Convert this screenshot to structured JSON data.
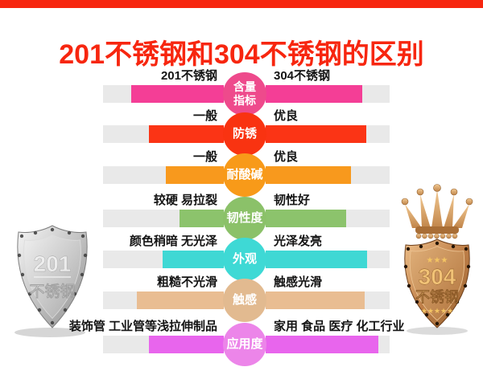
{
  "page": {
    "background": "#ffffff",
    "top_strip_color": "#f7260f"
  },
  "title": {
    "text": "201不锈钢和304不锈钢的区别",
    "color": "#f7260f"
  },
  "comparison": {
    "track_color": "#e9e9e9",
    "left_column_header": "201不锈钢",
    "right_column_header": "304不锈钢",
    "rows": [
      {
        "metric": "含量\n指标",
        "left_label": "201不锈钢",
        "right_label": "304不锈钢",
        "bar_color": "#f43e96",
        "circle_color": "#ee4a8c",
        "left_fill_pct": 77,
        "right_fill_pct": 78
      },
      {
        "metric": "防锈",
        "left_label": "一般",
        "right_label": "优良",
        "bar_color": "#fb3415",
        "circle_color": "#f93311",
        "left_fill_pct": 62,
        "right_fill_pct": 81
      },
      {
        "metric": "耐酸碱",
        "left_label": "一般",
        "right_label": "优良",
        "bar_color": "#f8991d",
        "circle_color": "#f89a19",
        "left_fill_pct": 48,
        "right_fill_pct": 69
      },
      {
        "metric": "韧性度",
        "left_label": "较硬 易拉裂",
        "right_label": "韧性好",
        "bar_color": "#8cc36c",
        "circle_color": "#8bc169",
        "left_fill_pct": 37,
        "right_fill_pct": 65
      },
      {
        "metric": "外观",
        "left_label": "颜色稍暗 无光泽",
        "right_label": "光泽发亮",
        "bar_color": "#3fd8d4",
        "circle_color": "#3ed9d5",
        "left_fill_pct": 51,
        "right_fill_pct": 82
      },
      {
        "metric": "触感",
        "left_label": "粗糙不光滑",
        "right_label": "触感光滑",
        "bar_color": "#e9bd92",
        "circle_color": "#e2ba90",
        "left_fill_pct": 72,
        "right_fill_pct": 80
      },
      {
        "metric": "应用度",
        "left_label": "装饰管 工业管等浅拉伸制品",
        "right_label": "家用 食品 医疗 化工行业",
        "bar_color": "#e865ed",
        "circle_color": "#ec85e9",
        "left_fill_pct": 62,
        "right_fill_pct": 91
      }
    ]
  },
  "badges": {
    "left_shield": {
      "line1": "201",
      "line2": "不锈钢"
    },
    "right_shield": {
      "line1": "304",
      "line2": "不锈钢",
      "stars_top": "★★★",
      "stars_bottom": "★★★★★"
    }
  }
}
